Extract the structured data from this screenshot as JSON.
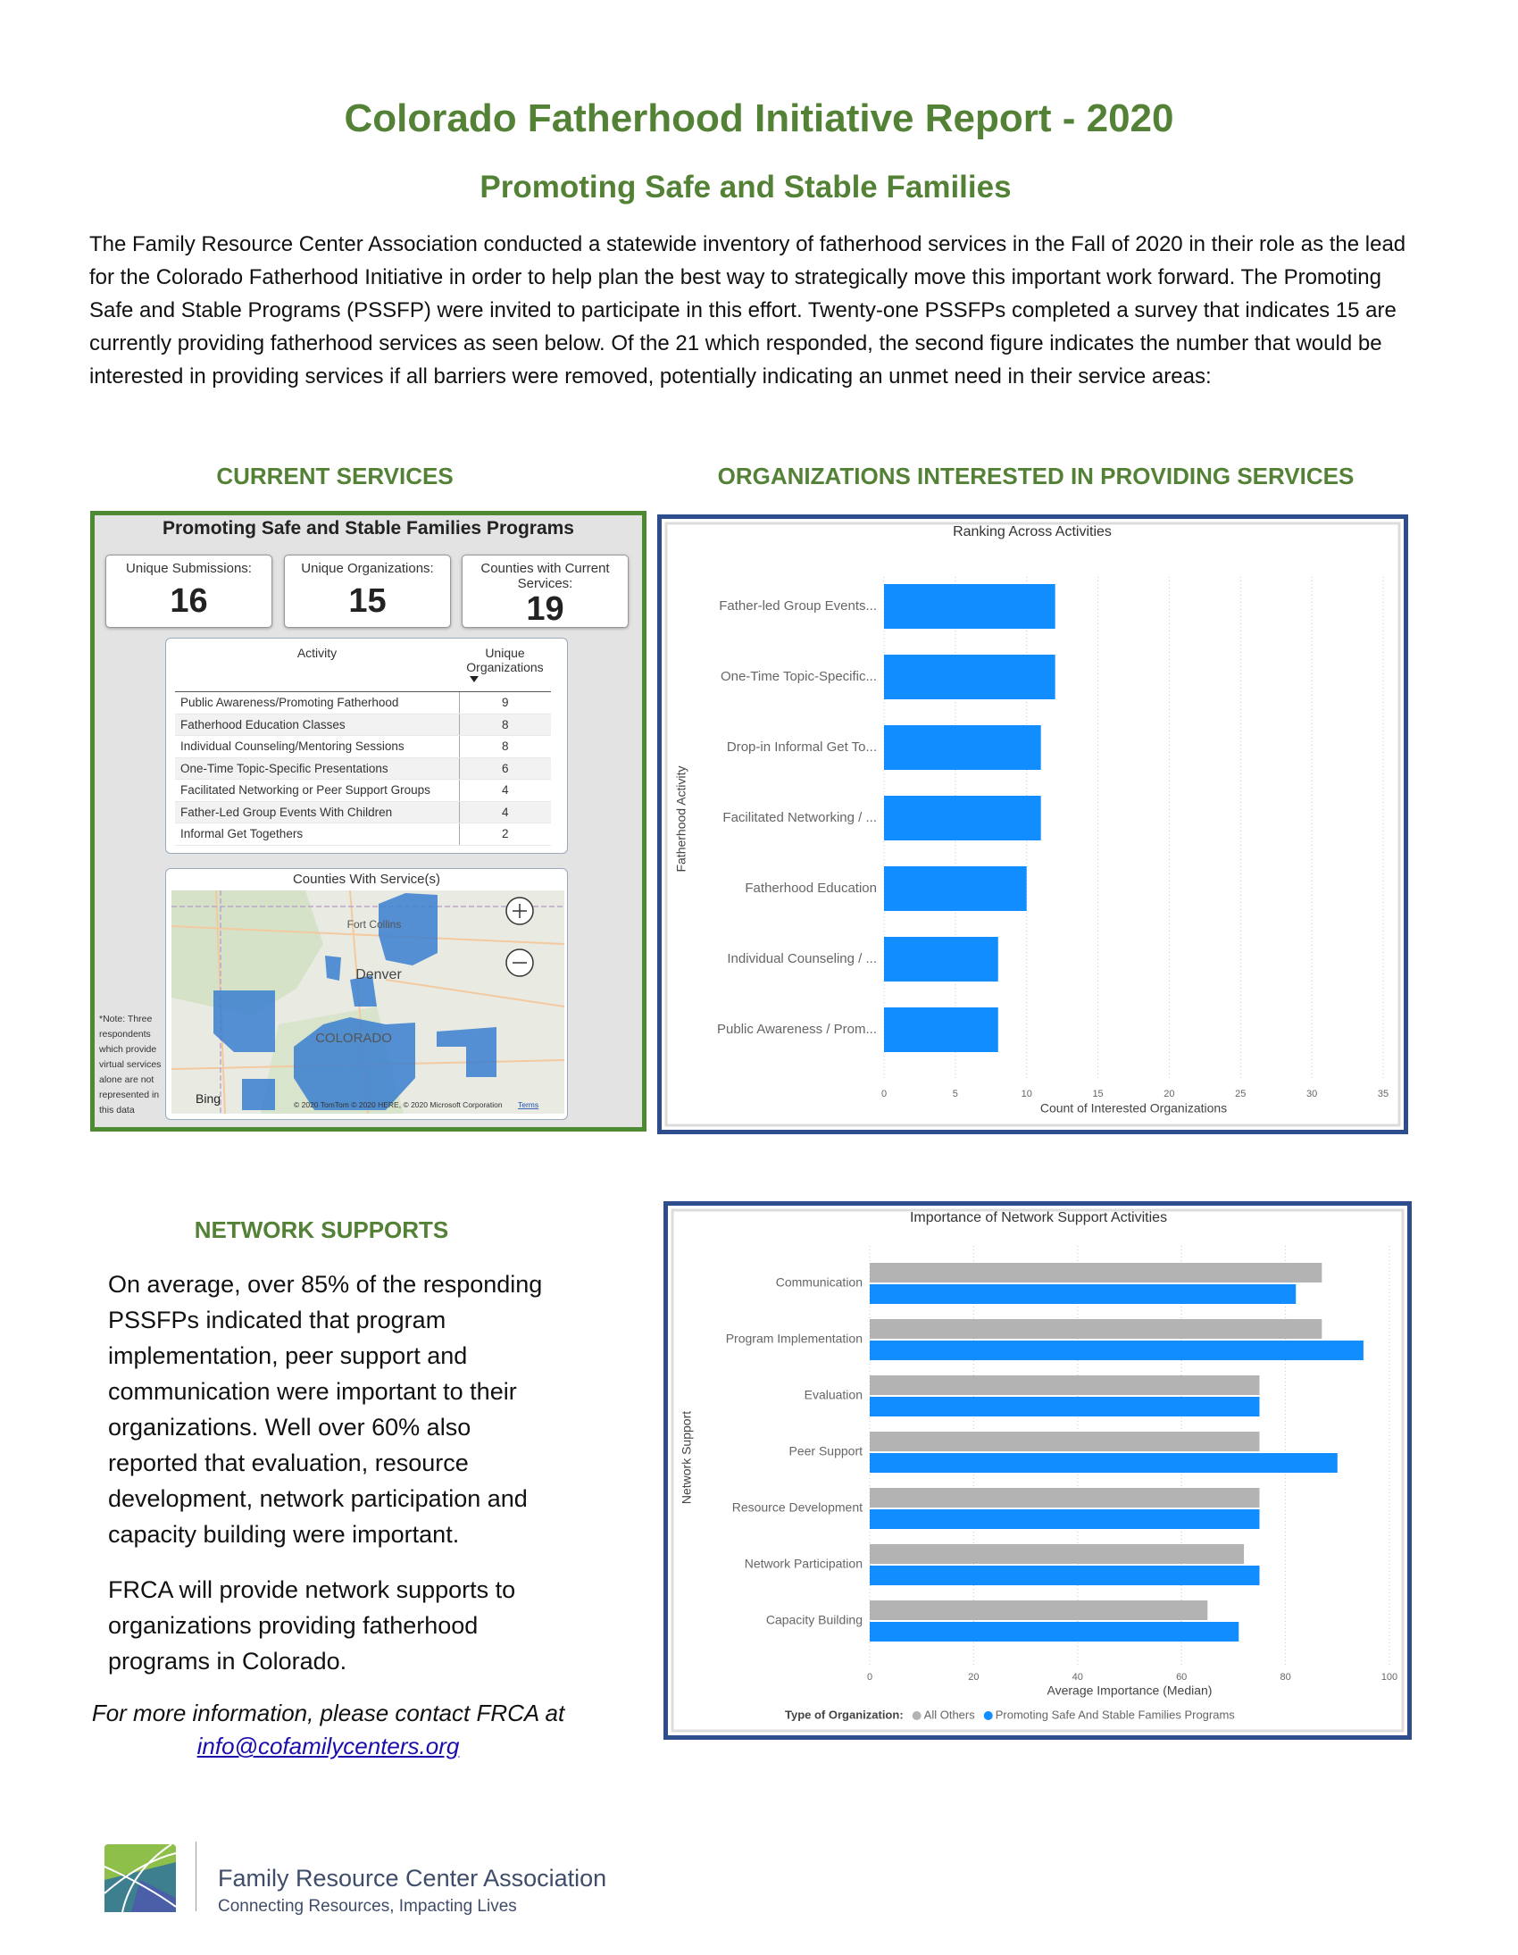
{
  "header": {
    "title": "Colorado Fatherhood Initiative Report - 2020",
    "subtitle": "Promoting Safe and Stable Families"
  },
  "intro": "The Family Resource Center Association conducted a statewide inventory of fatherhood services in the Fall of 2020 in their role as the lead for the Colorado Fatherhood Initiative in order to help plan the best way to strategically move this important work forward.  The Promoting Safe and Stable Programs (PSSFP) were invited to participate in this effort. Twenty-one PSSFPs completed a survey that indicates 15 are currently providing fatherhood services as seen below.  Of the 21 which responded, the second figure indicates the number that would be interested in providing services if all barriers were removed, potentially indicating an unmet need in their service areas:",
  "current_services": {
    "heading": "CURRENT SERVICES",
    "panel_title": "Promoting Safe and Stable Families Programs",
    "cards": [
      {
        "label": "Unique Submissions:",
        "value": 16
      },
      {
        "label": "Unique Organizations:",
        "value": 15
      },
      {
        "label": "Counties with Current Services:",
        "value": 19
      }
    ],
    "table": {
      "headers": [
        "Activity",
        "Unique Organizations"
      ],
      "rows": [
        [
          "Public Awareness/Promoting Fatherhood",
          9
        ],
        [
          "Fatherhood Education Classes",
          8
        ],
        [
          "Individual Counseling/Mentoring Sessions",
          8
        ],
        [
          "One-Time Topic-Specific Presentations",
          6
        ],
        [
          "Facilitated Networking or Peer Support Groups",
          4
        ],
        [
          "Father-Led Group Events With Children",
          4
        ],
        [
          "Informal Get Togethers",
          2
        ]
      ]
    },
    "map": {
      "title": "Counties With Service(s)",
      "places": [
        "Fort Collins",
        "Denver",
        "COLORADO"
      ],
      "provider": "Bing",
      "copyright": "© 2020 TomTom © 2020 HERE, © 2020 Microsoft Corporation",
      "terms": "Terms"
    },
    "note": "*Note: Three respondents which provide virtual services alone are not represented in this data"
  },
  "interested_heading": "ORGANIZATIONS INTERESTED IN PROVIDING SERVICES",
  "network": {
    "heading": "NETWORK SUPPORTS",
    "paragraphs": [
      "On average, over 85% of the responding PSSFPs indicated that program implementation, peer support and communication were important to their organizations. Well over 60% also reported that evaluation, resource development, network participation and capacity building were important.",
      "FRCA will provide network supports to organizations providing fatherhood programs in Colorado."
    ],
    "contact": "For more information, please contact FRCA at",
    "email": "info@cofamilycenters.org"
  },
  "footer": {
    "organization": "Family Resource Center Association",
    "tagline": "Connecting Resources, Impacting Lives"
  },
  "chart_data": [
    {
      "type": "bar",
      "orientation": "horizontal",
      "title": "Ranking Across Activities",
      "categories": [
        "Father-led Group Events...",
        "One-Time Topic-Specific...",
        "Drop-in Informal Get To...",
        "Facilitated Networking / ...",
        "Fatherhood Education",
        "Individual Counseling / ...",
        "Public Awareness / Prom..."
      ],
      "values": [
        12,
        12,
        11,
        11,
        10,
        8,
        8
      ],
      "color": "#118dff",
      "xlim": [
        0,
        35
      ],
      "xticks": [
        0,
        5,
        10,
        15,
        20,
        25,
        30,
        35
      ],
      "xlabel": "Count of Interested Organizations",
      "ylabel": "Fatherhood Activity",
      "grid": true
    },
    {
      "type": "bar",
      "orientation": "horizontal",
      "title": "Importance of Network Support Activities",
      "categories": [
        "Communication",
        "Program Implementation",
        "Evaluation",
        "Peer Support",
        "Resource Development",
        "Network Participation",
        "Capacity Building"
      ],
      "series": [
        {
          "name": "All Others",
          "color": "#b3b3b3",
          "values": [
            87,
            87,
            75,
            75,
            75,
            72,
            65
          ]
        },
        {
          "name": "Promoting Safe And Stable Families Programs",
          "color": "#118dff",
          "values": [
            82,
            95,
            75,
            90,
            75,
            75,
            71
          ]
        }
      ],
      "legend_title": "Type of Organization:",
      "xlim": [
        0,
        100
      ],
      "xticks": [
        0,
        20,
        40,
        60,
        80,
        100
      ],
      "xlabel": "Average Importance (Median)",
      "ylabel": "Network Support",
      "grid": true
    }
  ]
}
